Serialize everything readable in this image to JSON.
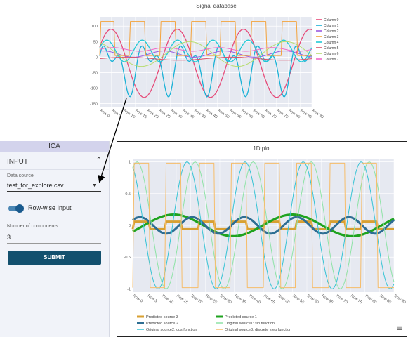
{
  "db_title": "Signal database",
  "plot_title": "1D plot",
  "panel": {
    "title": "ICA",
    "section": "INPUT",
    "data_source_label": "Data source",
    "data_source_value": "test_for_explore.csv",
    "toggle_label": "Row-wise Input",
    "toggle_on": true,
    "components_label": "Number of components",
    "components_value": "3",
    "submit_label": "SUBMIT",
    "accent": "#13506e"
  },
  "icons": [
    "chevron-up-icon",
    "dropdown-arrow-icon",
    "toggle-switch",
    "menu-icon"
  ],
  "chart_data": [
    {
      "type": "line",
      "title": "Signal database",
      "x": [
        "Row 0",
        "Row 5",
        "Row 10",
        "Row 15",
        "Row 20",
        "Row 25",
        "Row 30",
        "Row 35",
        "Row 40",
        "Row 45",
        "Row 50",
        "Row 55",
        "Row 60",
        "Row 65",
        "Row 70",
        "Row 75",
        "Row 80",
        "Row 85",
        "Row 90"
      ],
      "yticks": [
        "100",
        "50",
        "0",
        "-50",
        "-100",
        "-150"
      ],
      "ylim": [
        -160,
        130
      ],
      "legend_position": "right",
      "series": [
        {
          "name": "Column 0",
          "color": "#e64b79"
        },
        {
          "name": "Column 1",
          "color": "#19b1d6"
        },
        {
          "name": "Column 2",
          "color": "#9b59e0"
        },
        {
          "name": "Column 3",
          "color": "#f4a33c"
        },
        {
          "name": "Column 4",
          "color": "#22c9d6"
        },
        {
          "name": "Column 5",
          "color": "#d9536a"
        },
        {
          "name": "Column 6",
          "color": "#b7dc6e"
        },
        {
          "name": "Column 7",
          "color": "#f16bc7"
        }
      ]
    },
    {
      "type": "line",
      "title": "1D plot",
      "x": [
        "Row 0",
        "Row 5",
        "Row 10",
        "Row 15",
        "Row 20",
        "Row 25",
        "Row 30",
        "Row 35",
        "Row 40",
        "Row 45",
        "Row 50",
        "Row 55",
        "Row 60",
        "Row 65",
        "Row 70",
        "Row 75",
        "Row 80",
        "Row 85",
        "Row 90"
      ],
      "yticks": [
        "1",
        "0.5",
        "0",
        "-0.5",
        "-1"
      ],
      "ylim": [
        -1.05,
        1.05
      ],
      "legend_position": "bottom",
      "series": [
        {
          "name": "Predicted source 3",
          "color": "#d8a032"
        },
        {
          "name": "Predicted source 1",
          "color": "#1fa31f"
        },
        {
          "name": "Predicted source 2",
          "color": "#2e6e93"
        },
        {
          "name": "Original source1: sin function",
          "color": "#8ee3a6"
        },
        {
          "name": "Original source2: cos function",
          "color": "#35c3d4"
        },
        {
          "name": "Original source3: discrete step function",
          "color": "#f6bd6a"
        }
      ]
    }
  ]
}
